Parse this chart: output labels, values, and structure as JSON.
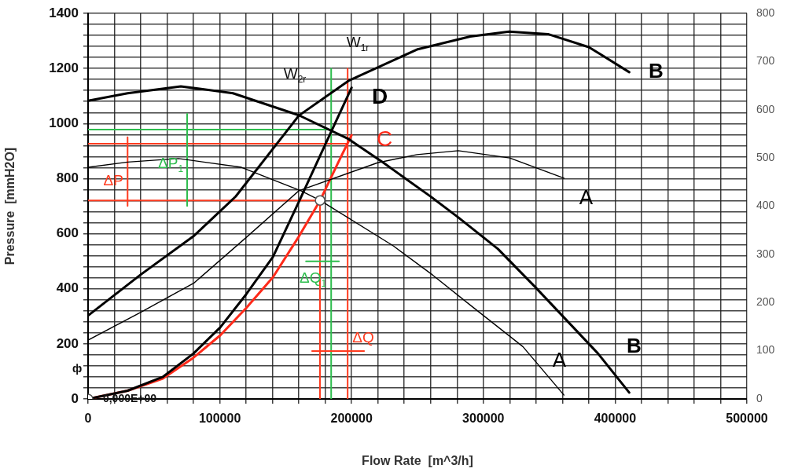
{
  "chart_data": {
    "type": "line",
    "xlabel": "Flow Rate  [m^3/h]",
    "ylabel": "Pressure  [mmH2O]",
    "xlim": [
      0,
      500000
    ],
    "xticks": [
      0,
      {
        "value": 20000,
        "label": null
      },
      {
        "value": 40000,
        "label": null
      },
      {
        "value": 60000,
        "label": null
      },
      {
        "value": 80000,
        "label": null
      },
      100000,
      {
        "value": 120000,
        "label": null
      },
      {
        "value": 140000,
        "label": null
      },
      {
        "value": 160000,
        "label": null
      },
      {
        "value": 180000,
        "label": null
      },
      200000,
      {
        "value": 220000,
        "label": null
      },
      {
        "value": 240000,
        "label": null
      },
      {
        "value": 260000,
        "label": null
      },
      {
        "value": 280000,
        "label": null
      },
      300000,
      {
        "value": 320000,
        "label": null
      },
      {
        "value": 340000,
        "label": null
      },
      {
        "value": 360000,
        "label": null
      },
      {
        "value": 380000,
        "label": null
      },
      400000,
      {
        "value": 420000,
        "label": null
      },
      {
        "value": 440000,
        "label": null
      },
      {
        "value": 460000,
        "label": null
      },
      {
        "value": 480000,
        "label": null
      },
      500000
    ],
    "ylim": [
      0,
      1400
    ],
    "yticks": [
      0,
      {
        "value": 40,
        "label": null
      },
      {
        "value": 80,
        "label": null
      },
      {
        "value": 120,
        "label": null
      },
      {
        "value": 160,
        "label": null
      },
      200,
      {
        "value": 240,
        "label": null
      },
      {
        "value": 280,
        "label": null
      },
      {
        "value": 320,
        "label": null
      },
      {
        "value": 360,
        "label": null
      },
      400,
      {
        "value": 440,
        "label": null
      },
      {
        "value": 480,
        "label": null
      },
      {
        "value": 520,
        "label": null
      },
      {
        "value": 560,
        "label": null
      },
      600,
      {
        "value": 640,
        "label": null
      },
      {
        "value": 680,
        "label": null
      },
      {
        "value": 720,
        "label": null
      },
      {
        "value": 760,
        "label": null
      },
      800,
      {
        "value": 840,
        "label": null
      },
      {
        "value": 880,
        "label": null
      },
      {
        "value": 920,
        "label": null
      },
      {
        "value": 960,
        "label": null
      },
      1000,
      {
        "value": 1040,
        "label": null
      },
      {
        "value": 1080,
        "label": null
      },
      {
        "value": 1120,
        "label": null
      },
      {
        "value": 1160,
        "label": null
      },
      1200,
      {
        "value": 1240,
        "label": null
      },
      {
        "value": 1280,
        "label": null
      },
      {
        "value": 1320,
        "label": null
      },
      {
        "value": 1360,
        "label": null
      },
      1400
    ],
    "y2lim": [
      0,
      800
    ],
    "y2ticks": [
      0,
      100,
      200,
      300,
      400,
      500,
      600,
      700,
      800
    ],
    "grid": true,
    "legend": false,
    "marker": "none",
    "line_style": "solid",
    "series": [
      {
        "name": "B",
        "color": "#000000",
        "x": [
          0,
          30000,
          70400,
          110000,
          160000,
          197600,
          224000,
          259700,
          281000,
          311000,
          339000,
          387000,
          410700
        ],
        "values": [
          1083,
          1110,
          1135,
          1110,
          1030,
          944,
          858,
          736,
          659,
          545,
          408,
          165,
          23
        ]
      },
      {
        "name": "A",
        "color": "#000000",
        "x": [
          0,
          30000,
          68700,
          116400,
          161800,
          176100,
          231600,
          261500,
          291300,
          330000,
          361200
        ],
        "values": [
          841,
          860,
          873,
          841,
          755,
          721,
          556,
          450,
          336,
          190,
          14
        ]
      },
      {
        "name": "B",
        "color": "#000000",
        "axis": "y2",
        "x": [
          0,
          40000,
          80600,
          112000,
          160000,
          197600,
          249600,
          290000,
          319400,
          349000,
          380000,
          410700
        ],
        "values": [
          173,
          258,
          339,
          420,
          588,
          660,
          725,
          752,
          762,
          757,
          730,
          678
        ]
      },
      {
        "name": "A",
        "color": "#000000",
        "axis": "y2",
        "x": [
          0,
          40000,
          80600,
          120000,
          160000,
          219700,
          249600,
          281000,
          320000,
          361200
        ],
        "values": [
          122,
          180,
          241,
          335,
          432,
          490,
          507,
          515,
          500,
          458
        ]
      },
      {
        "name": "D",
        "color": "#000000",
        "x": [
          0,
          30000,
          56700,
          80000,
          100300,
          120000,
          140300,
          160000,
          183900,
          200000
        ],
        "values": [
          0,
          30,
          80,
          165,
          260,
          380,
          516,
          716,
          964,
          1130
        ]
      },
      {
        "name": "C",
        "color": "#ff2a1a",
        "x": [
          0,
          30000,
          56700,
          80000,
          100300,
          120000,
          140300,
          160000,
          176100,
          190000,
          200000
        ],
        "values": [
          0,
          30,
          74,
          150,
          231,
          330,
          442,
          590,
          721,
          860,
          958
        ]
      },
      {
        "name": "ΔP",
        "color": "#ff3b1f",
        "x": [
          30000,
          30000
        ],
        "values": [
          950,
          701
        ]
      },
      {
        "name": "ΔP$_{1}$",
        "color": "#2ebd4e",
        "x": [
          75200,
          75200
        ],
        "values": [
          1035,
          701
        ]
      },
      {
        "name": "ΔQ",
        "color": "#ff3b1f",
        "x": [
          170000,
          209500
        ],
        "values": [
          174,
          174
        ]
      },
      {
        "name": "ΔQ$_{1}$",
        "color": "#2ebd4e",
        "x": [
          165400,
          190400
        ],
        "values": [
          500,
          500
        ]
      },
      {
        "color": "#ff3b1f",
        "x": [
          0,
          197000
        ],
        "values": [
          927,
          927
        ]
      },
      {
        "color": "#ff3b1f",
        "x": [
          197000,
          197000
        ],
        "values": [
          1200,
          0
        ]
      },
      {
        "color": "#ff3b1f",
        "x": [
          0,
          176000,
          176000
        ],
        "values": [
          721,
          721,
          0
        ]
      },
      {
        "color": "#2ebd4e",
        "x": [
          0,
          184500
        ],
        "values": [
          978,
          978
        ]
      },
      {
        "color": "#2ebd4e",
        "x": [
          184500,
          184500
        ],
        "values": [
          1200,
          0
        ]
      },
      {
        "color": "#ffffff",
        "type": "scatter",
        "marker": "circle",
        "x": [
          0,
          176100
        ],
        "values": [
          0,
          721
        ]
      }
    ],
    "annotations": [
      "W$_{1r}$",
      "W$_{2r}$",
      "0,000E+00",
      "ф"
    ]
  }
}
